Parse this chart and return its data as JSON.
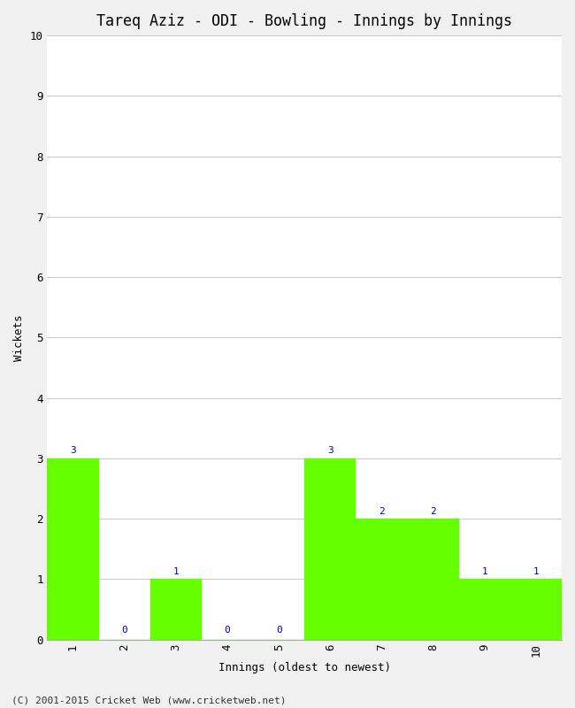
{
  "title": "Tareq Aziz - ODI - Bowling - Innings by Innings",
  "xlabel": "Innings (oldest to newest)",
  "ylabel": "Wickets",
  "categories": [
    "1",
    "2",
    "3",
    "4",
    "5",
    "6",
    "7",
    "8",
    "9",
    "10"
  ],
  "values": [
    3,
    0,
    1,
    0,
    0,
    3,
    2,
    2,
    1,
    1
  ],
  "bar_color": "#66ff00",
  "bar_edge_color": "#66ff00",
  "label_color": "#0000cc",
  "ylim": [
    0,
    10
  ],
  "yticks": [
    0,
    1,
    2,
    3,
    4,
    5,
    6,
    7,
    8,
    9,
    10
  ],
  "background_color": "#f0f0f0",
  "plot_bg_color": "#ffffff",
  "title_fontsize": 12,
  "axis_label_fontsize": 9,
  "tick_fontsize": 9,
  "bar_label_fontsize": 8,
  "footer": "(C) 2001-2015 Cricket Web (www.cricketweb.net)"
}
